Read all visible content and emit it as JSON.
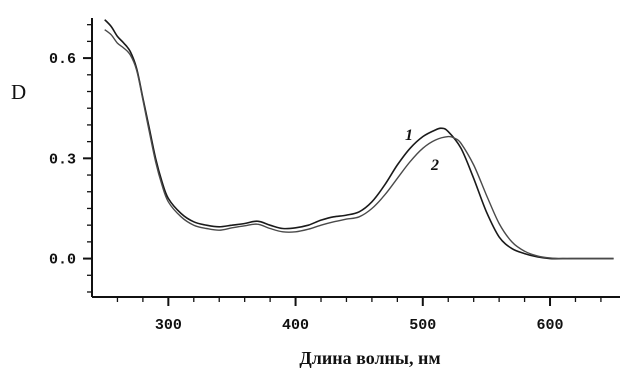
{
  "chart_data": {
    "type": "line",
    "xlabel": "Длина волны, нм",
    "ylabel": "D",
    "xlim": [
      240,
      655
    ],
    "ylim": [
      -0.115,
      0.72
    ],
    "xticks": [
      300,
      400,
      500,
      600
    ],
    "xtick_labels": [
      "300",
      "400",
      "500",
      "600"
    ],
    "yticks": [
      0.0,
      0.3,
      0.6
    ],
    "ytick_labels": [
      "0.0",
      "0.3",
      "0.6"
    ],
    "grid": false,
    "series": [
      {
        "name": "1",
        "x": [
          250,
          255,
          260,
          265,
          270,
          275,
          280,
          285,
          290,
          295,
          300,
          310,
          320,
          330,
          340,
          350,
          360,
          370,
          380,
          390,
          400,
          410,
          420,
          430,
          440,
          450,
          460,
          470,
          480,
          490,
          500,
          510,
          515,
          520,
          530,
          540,
          550,
          560,
          570,
          580,
          590,
          600,
          610,
          620,
          630,
          640,
          650
        ],
        "y": [
          0.715,
          0.695,
          0.665,
          0.645,
          0.62,
          0.57,
          0.48,
          0.39,
          0.3,
          0.23,
          0.18,
          0.135,
          0.11,
          0.1,
          0.095,
          0.1,
          0.105,
          0.112,
          0.1,
          0.09,
          0.092,
          0.1,
          0.115,
          0.125,
          0.13,
          0.14,
          0.17,
          0.22,
          0.28,
          0.33,
          0.365,
          0.385,
          0.39,
          0.38,
          0.33,
          0.24,
          0.14,
          0.065,
          0.03,
          0.015,
          0.005,
          0.0,
          0.0,
          0.0,
          0.0,
          0.0,
          0.0
        ]
      },
      {
        "name": "2",
        "x": [
          250,
          255,
          260,
          265,
          270,
          275,
          280,
          285,
          290,
          295,
          300,
          310,
          320,
          330,
          340,
          350,
          360,
          370,
          380,
          390,
          400,
          410,
          420,
          430,
          440,
          450,
          460,
          470,
          480,
          490,
          500,
          510,
          520,
          525,
          530,
          540,
          550,
          560,
          570,
          580,
          590,
          600,
          610,
          620,
          630,
          640,
          650
        ],
        "y": [
          0.685,
          0.67,
          0.645,
          0.63,
          0.61,
          0.565,
          0.475,
          0.38,
          0.29,
          0.22,
          0.17,
          0.125,
          0.1,
          0.09,
          0.085,
          0.092,
          0.098,
          0.103,
          0.09,
          0.08,
          0.08,
          0.088,
          0.1,
          0.11,
          0.118,
          0.125,
          0.15,
          0.19,
          0.24,
          0.29,
          0.33,
          0.355,
          0.365,
          0.36,
          0.345,
          0.28,
          0.19,
          0.105,
          0.05,
          0.022,
          0.008,
          0.002,
          0.0,
          0.0,
          0.0,
          0.0,
          0.0
        ]
      }
    ]
  }
}
